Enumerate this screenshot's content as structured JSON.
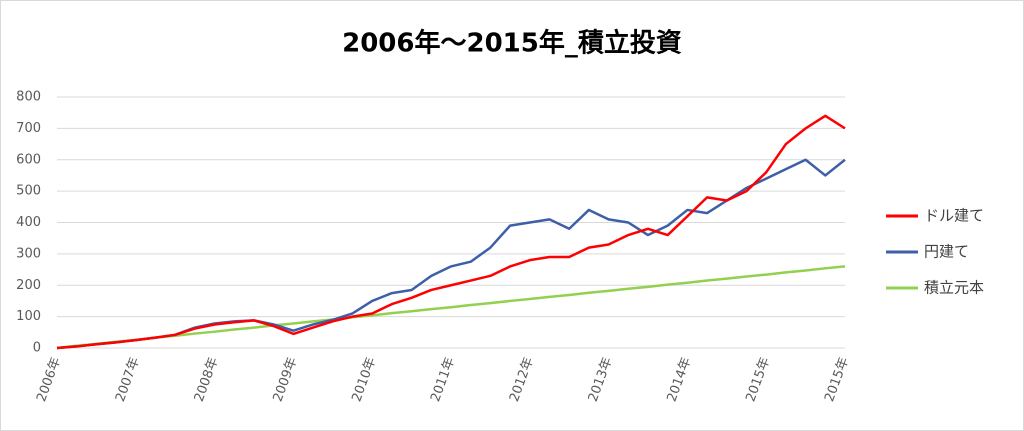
{
  "chart_data": {
    "type": "line",
    "title": "2006年～2015年_積立投資",
    "categories": [
      "2006年",
      null,
      null,
      null,
      "2007年",
      null,
      null,
      null,
      "2008年",
      null,
      null,
      null,
      "2009年",
      null,
      null,
      null,
      "2010年",
      null,
      null,
      null,
      "2011年",
      null,
      null,
      null,
      "2012年",
      null,
      null,
      null,
      "2013年",
      null,
      null,
      null,
      "2014年",
      null,
      null,
      null,
      "2015年",
      null,
      null,
      null,
      "2015年"
    ],
    "series": [
      {
        "name": "ドル建て",
        "color": "#ff0000",
        "values": [
          0,
          5,
          12,
          18,
          25,
          33,
          42,
          62,
          75,
          82,
          88,
          70,
          45,
          65,
          85,
          100,
          110,
          140,
          160,
          185,
          200,
          215,
          230,
          260,
          280,
          290,
          290,
          320,
          330,
          360,
          380,
          360,
          420,
          480,
          470,
          500,
          560,
          650,
          700,
          740,
          700
        ]
      },
      {
        "name": "円建て",
        "color": "#3e5fa8",
        "values": [
          0,
          5,
          12,
          18,
          25,
          33,
          42,
          65,
          78,
          85,
          88,
          75,
          55,
          75,
          90,
          110,
          150,
          175,
          185,
          230,
          260,
          275,
          320,
          390,
          400,
          410,
          380,
          440,
          410,
          400,
          360,
          390,
          440,
          430,
          470,
          510,
          540,
          570,
          600,
          550,
          600
        ]
      },
      {
        "name": "積立元本",
        "color": "#92d050",
        "values": [
          0,
          7,
          13,
          20,
          26,
          33,
          39,
          46,
          52,
          59,
          65,
          72,
          78,
          85,
          91,
          98,
          104,
          111,
          117,
          124,
          130,
          137,
          143,
          150,
          156,
          163,
          169,
          176,
          182,
          189,
          195,
          202,
          208,
          215,
          221,
          228,
          234,
          241,
          247,
          254,
          260
        ]
      }
    ],
    "ylim": [
      0,
      800
    ],
    "yticks": [
      0,
      100,
      200,
      300,
      400,
      500,
      600,
      700,
      800
    ],
    "grid": true,
    "legend": "right"
  }
}
